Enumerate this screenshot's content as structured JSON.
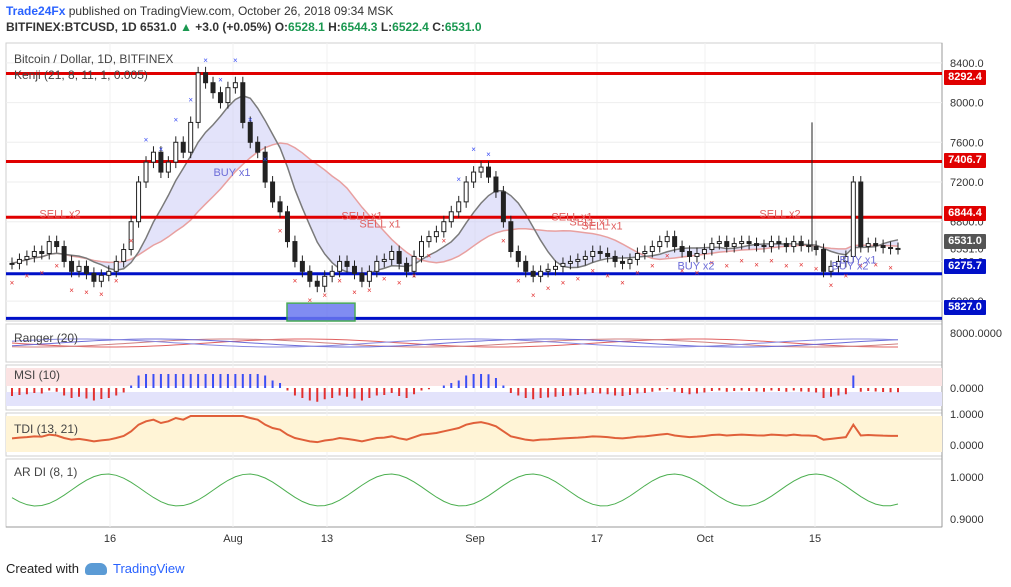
{
  "header": {
    "brand": "Trade24Fx",
    "published_text": "published on TradingView.com, October 26, 2018 09:34 MSK",
    "symbol": "BITFINEX:BTCUSD, 1D",
    "last": "6531.0",
    "change": "+3.0 (+0.05%)",
    "o_label": "O:",
    "o": "6528.1",
    "h_label": "H:",
    "h": "6544.3",
    "l_label": "L:",
    "l": "6522.4",
    "c_label": "C:",
    "c": "6531.0"
  },
  "main_pane": {
    "title": "Bitcoin / Dollar, 1D, BITFINEX",
    "indicator": "Kenji (21, 8, 11, 1, 0.005)"
  },
  "panes": {
    "ranger": "Ranger (20)",
    "msi": "MSI (10)",
    "tdi": "TDI (13, 21)",
    "ardi": "AR DI (8, 1)"
  },
  "footer": {
    "created_with": "Created with",
    "tradingview": "TradingView"
  },
  "price_levels": [
    {
      "label": "8292.4",
      "color": "#e00000"
    },
    {
      "label": "7406.7",
      "color": "#e00000"
    },
    {
      "label": "6844.4",
      "color": "#e00000"
    },
    {
      "label": "6275.7",
      "color": "#0010c8"
    },
    {
      "label": "5827.0",
      "color": "#0010c8"
    }
  ],
  "chart_data": [
    {
      "type": "candlestick",
      "title": "Bitcoin / Dollar, 1D, BITFINEX",
      "x_ticks": [
        "16",
        "Aug",
        "13",
        "Sep",
        "17",
        "Oct",
        "15"
      ],
      "y_ticks": [
        "8400.0",
        "8000.0",
        "7600.0",
        "7200.0",
        "6800.0",
        "6531.0",
        "6400.0",
        "6000.0"
      ],
      "ylim": [
        5800,
        8600
      ],
      "horizontal_levels": [
        8292.4,
        7406.7,
        6844.4,
        6275.7,
        5827.0
      ],
      "current_price": 6531.0,
      "annotations": [
        "SELL x2",
        "BUY x1",
        "SELL x1",
        "SELL x1",
        "SELL x1",
        "SELL x1",
        "SELL x1",
        "BUY x2",
        "SELL x2",
        "BUY x1",
        "BUY x2"
      ]
    },
    {
      "type": "line",
      "title": "Ranger (20)",
      "y_ticks": [
        "8000.0000"
      ]
    },
    {
      "type": "bar",
      "title": "MSI (10)",
      "y_ticks": [
        "0.0000"
      ]
    },
    {
      "type": "line",
      "title": "TDI (13, 21)",
      "y_ticks": [
        "1.0000",
        "0.0000"
      ]
    },
    {
      "type": "line",
      "title": "AR DI (8, 1)",
      "y_ticks": [
        "1.0000",
        "0.9000"
      ]
    }
  ]
}
